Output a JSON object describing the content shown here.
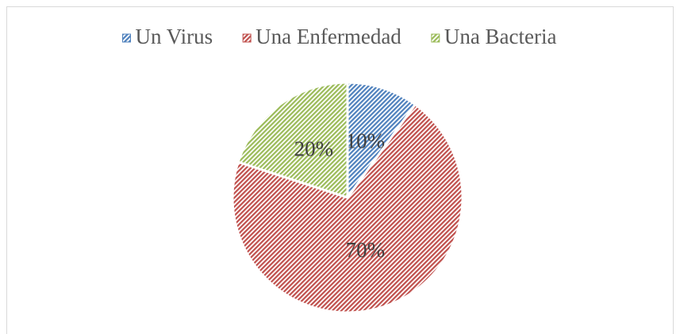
{
  "chart_data": {
    "type": "pie",
    "categories": [
      "Un Virus",
      "Una Enfermedad",
      "Una Bacteria"
    ],
    "values": [
      10,
      70,
      20
    ],
    "value_labels": [
      "10%",
      "70%",
      "20%"
    ],
    "colors": [
      "#4f81bd",
      "#c0504d",
      "#9bbb59"
    ],
    "legend": "top"
  }
}
